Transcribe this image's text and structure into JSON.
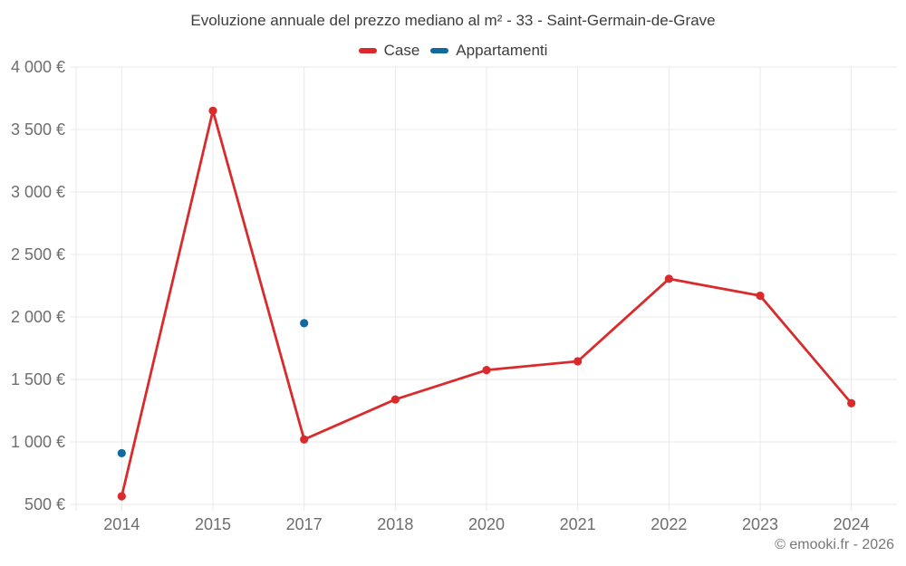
{
  "title": "Evoluzione annuale del prezzo mediano al m² - 33 - Saint-Germain-de-Grave",
  "legend": [
    {
      "label": "Case",
      "color": "#d92b2b"
    },
    {
      "label": "Appartamenti",
      "color": "#1169a2"
    }
  ],
  "footer": {
    "credit": "© emooki.fr - 2026"
  },
  "chart_data": {
    "type": "line",
    "title": "Evoluzione annuale del prezzo mediano al m² - 33 - Saint-Germain-de-Grave",
    "categories": [
      "2014",
      "2015",
      "2017",
      "2018",
      "2020",
      "2021",
      "2022",
      "2023",
      "2024"
    ],
    "series": [
      {
        "name": "Case",
        "color": "#d92b2b",
        "values": [
          565,
          3650,
          1020,
          1340,
          1575,
          1645,
          2305,
          2170,
          1310
        ]
      },
      {
        "name": "Appartamenti",
        "color": "#1169a2",
        "values": [
          910,
          null,
          1950,
          null,
          null,
          null,
          null,
          null,
          null
        ]
      }
    ],
    "xlabel": "",
    "ylabel": "",
    "ylim": [
      500,
      4000
    ],
    "yticks": [
      {
        "value": 500,
        "label": "500 €"
      },
      {
        "value": 1000,
        "label": "1 000 €"
      },
      {
        "value": 1500,
        "label": "1 500 €"
      },
      {
        "value": 2000,
        "label": "2 000 €"
      },
      {
        "value": 2500,
        "label": "2 500 €"
      },
      {
        "value": 3000,
        "label": "3 000 €"
      },
      {
        "value": 3500,
        "label": "3 500 €"
      },
      {
        "value": 4000,
        "label": "4 000 €"
      }
    ],
    "grid": true,
    "legend_position": "top",
    "colors": {
      "grid": "#e8e8e8",
      "axis_label": "#6e6e6e",
      "title_text": "#3d3d3d"
    }
  }
}
